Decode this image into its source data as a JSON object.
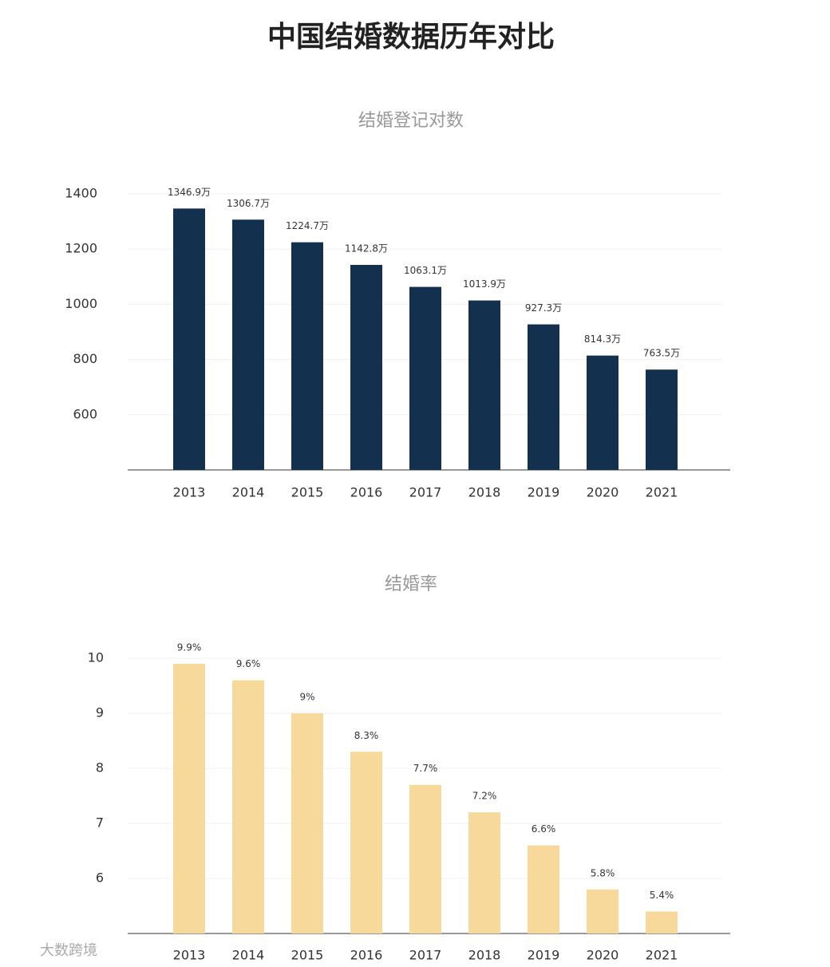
{
  "title": "中国结婚数据历年对比",
  "watermark": "大数跨境",
  "chart_data": [
    {
      "type": "bar",
      "title": "结婚登记对数",
      "categories": [
        "2013",
        "2014",
        "2015",
        "2016",
        "2017",
        "2018",
        "2019",
        "2020",
        "2021"
      ],
      "values": [
        1346.9,
        1306.7,
        1224.7,
        1142.8,
        1063.1,
        1013.9,
        927.3,
        814.3,
        763.5
      ],
      "value_labels": [
        "1346.9万",
        "1306.7万",
        "1224.7万",
        "1142.8万",
        "1063.1万",
        "1013.9万",
        "927.3万",
        "814.3万",
        "763.5万"
      ],
      "color": "#13304f",
      "ylim": [
        400,
        1400
      ],
      "yticks": [
        600,
        800,
        1000,
        1200,
        1400
      ],
      "grid": true
    },
    {
      "type": "bar",
      "title": "结婚率",
      "categories": [
        "2013",
        "2014",
        "2015",
        "2016",
        "2017",
        "2018",
        "2019",
        "2020",
        "2021"
      ],
      "values": [
        9.9,
        9.6,
        9,
        8.3,
        7.7,
        7.2,
        6.6,
        5.8,
        5.4
      ],
      "value_labels": [
        "9.9%",
        "9.6%",
        "9%",
        "8.3%",
        "7.7%",
        "7.2%",
        "6.6%",
        "5.8%",
        "5.4%"
      ],
      "color": "#f6d99b",
      "ylim": [
        5,
        10
      ],
      "yticks": [
        6,
        7,
        8,
        9,
        10
      ],
      "grid": true
    }
  ]
}
